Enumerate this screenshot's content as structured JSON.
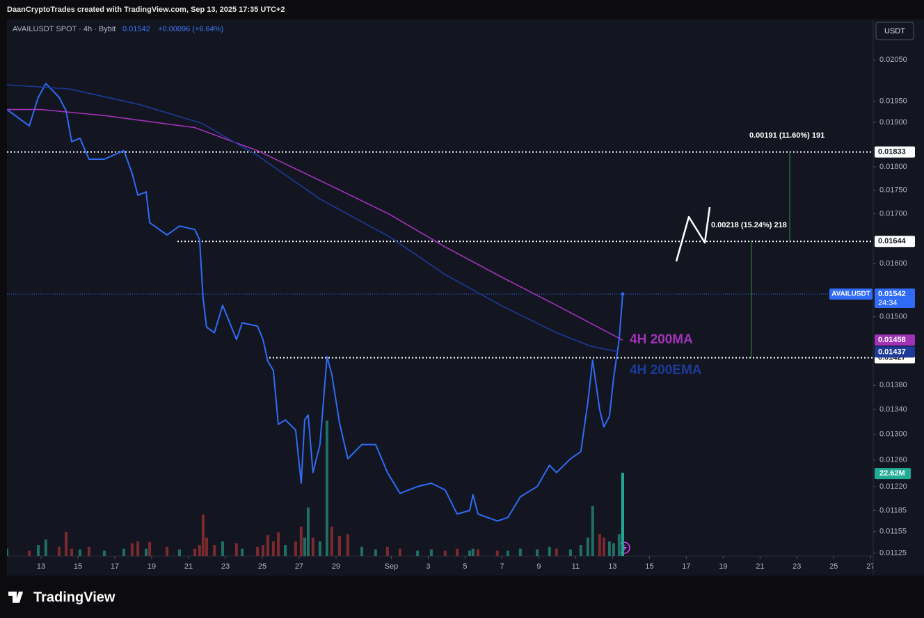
{
  "header": {
    "credit": "DaanCryptoTrades created with TradingView.com, Sep 13, 2025 17:35 UTC+2",
    "symbol": "AVAILUSDT SPOT · 4h · Bybit",
    "change": "+0.00096 (+6.64%)",
    "currency": "USDT",
    "brand": "TradingView"
  },
  "chart_data": {
    "type": "line",
    "log": true,
    "grid": false,
    "x": [
      11.15,
      12.36,
      12.85,
      13.26,
      13.98,
      14.36,
      14.66,
      15.11,
      15.6,
      16.43,
      17.49,
      17.94,
      18.25,
      18.7,
      18.89,
      19.83,
      20.51,
      21.34,
      21.6,
      21.79,
      21.98,
      22.4,
      22.85,
      23.6,
      23.91,
      24.74,
      25.04,
      25.3,
      25.6,
      25.87,
      26.25,
      26.81,
      27.11,
      27.3,
      27.49,
      27.75,
      28.13,
      28.51,
      28.77,
      29.19,
      29.64,
      30.4,
      31.15,
      31.79,
      32.47,
      33.42,
      34.17,
      34.92,
      35.57,
      36.25,
      36.43,
      36.7,
      37.75,
      38.32,
      39.0,
      39.91,
      40.58,
      40.96,
      41.72,
      42.28,
      42.66,
      42.92,
      43.3,
      43.53,
      43.83,
      44.06,
      44.36,
      44.55
    ],
    "xlim": [
      11.15,
      58.14
    ],
    "xticks": [
      13,
      15,
      17,
      19,
      21,
      23,
      25,
      27,
      29,
      {
        "value": 32,
        "label": "Sep"
      },
      {
        "value": 34,
        "label": "3"
      },
      {
        "value": 36,
        "label": "5"
      },
      {
        "value": 38,
        "label": "7"
      },
      {
        "value": 40,
        "label": "9"
      },
      {
        "value": 42,
        "label": "11"
      },
      {
        "value": 44,
        "label": "13"
      },
      {
        "value": 46,
        "label": "15"
      },
      {
        "value": 48,
        "label": "17"
      },
      {
        "value": 50,
        "label": "19"
      },
      {
        "value": 52,
        "label": "21"
      },
      {
        "value": 54,
        "label": "23"
      },
      {
        "value": 56,
        "label": "25"
      },
      {
        "value": 58,
        "label": "27"
      }
    ],
    "ylim": [
      0.01121,
      0.0215
    ],
    "yticks": [
      {
        "value": 0.0205,
        "label": "0.02050"
      },
      {
        "value": 0.0195,
        "label": "0.01950"
      },
      {
        "value": 0.019,
        "label": "0.01900"
      },
      {
        "value": 0.018,
        "label": "0.01800"
      },
      {
        "value": 0.0175,
        "label": "0.01750"
      },
      {
        "value": 0.017,
        "label": "0.01700"
      },
      {
        "value": 0.016,
        "label": "0.01600"
      },
      {
        "value": 0.015,
        "label": "0.01500"
      },
      {
        "value": 0.0138,
        "label": "0.01380"
      },
      {
        "value": 0.0134,
        "label": "0.01340"
      },
      {
        "value": 0.013,
        "label": "0.01300"
      },
      {
        "value": 0.0126,
        "label": "0.01260"
      },
      {
        "value": 0.0122,
        "label": "0.01220"
      },
      0.01185,
      0.01155,
      0.01125
    ],
    "series": [
      {
        "name": "AVAILUSDT",
        "color": "#2f6bf5",
        "values": [
          0.0193,
          0.01892,
          0.01959,
          0.01992,
          0.01959,
          0.01927,
          0.01856,
          0.01864,
          0.01817,
          0.01817,
          0.01836,
          0.01786,
          0.01739,
          0.01746,
          0.01682,
          0.01657,
          0.01675,
          0.01668,
          0.01647,
          0.01534,
          0.01481,
          0.01471,
          0.01521,
          0.01459,
          0.01489,
          0.01483,
          0.01459,
          0.01421,
          0.01405,
          0.01316,
          0.01323,
          0.01307,
          0.01225,
          0.01323,
          0.01331,
          0.01241,
          0.01284,
          0.01429,
          0.01399,
          0.01318,
          0.01262,
          0.01284,
          0.01284,
          0.01241,
          0.0121,
          0.0122,
          0.01225,
          0.01215,
          0.0118,
          0.01185,
          0.01208,
          0.0118,
          0.0117,
          0.01175,
          0.01205,
          0.0122,
          0.01252,
          0.01241,
          0.01262,
          0.01273,
          0.01352,
          0.01423,
          0.0134,
          0.01312,
          0.01329,
          0.01393,
          0.01459,
          0.01542
        ]
      },
      {
        "name": "4H 200MA",
        "color": "#a233b8",
        "x": [
          11.15,
          13.0,
          16.43,
          21.34,
          24.74,
          28.89,
          31.91,
          34.92,
          37.94,
          40.96,
          44.55
        ],
        "values": [
          0.0193,
          0.0193,
          0.01916,
          0.01888,
          0.01836,
          0.01756,
          0.01699,
          0.01633,
          0.01575,
          0.01521,
          0.01458
        ]
      },
      {
        "name": "4H 200EMA",
        "color": "#1d3a98",
        "x": [
          11.15,
          14.55,
          18.32,
          21.72,
          24.74,
          28.13,
          31.91,
          34.92,
          37.94,
          40.96,
          42.85,
          44.36
        ],
        "values": [
          0.01989,
          0.01979,
          0.01942,
          0.01898,
          0.01825,
          0.01731,
          0.01653,
          0.01579,
          0.01521,
          0.01471,
          0.01447,
          0.01437
        ]
      }
    ],
    "volume": {
      "up_color": "#1f6f66",
      "down_color": "#7d2a2e",
      "last_color": "#22ab94",
      "last_label": "22.62M",
      "values": [
        2.0,
        1.5,
        3.0,
        4.5,
        2.5,
        6.6,
        2.0,
        1.8,
        2.5,
        1.5,
        2.0,
        3.5,
        4.0,
        2.0,
        3.8,
        2.5,
        1.8,
        2.0,
        3.0,
        11.3,
        5.0,
        3.0,
        4.0,
        3.5,
        2.0,
        2.5,
        3.0,
        5.7,
        4.0,
        6.5,
        3.0,
        4.0,
        8.0,
        5.0,
        13.2,
        5.0,
        4.0,
        36.8,
        8.0,
        5.5,
        6.0,
        2.5,
        1.8,
        2.5,
        2.0,
        1.5,
        1.8,
        1.5,
        2.0,
        1.5,
        2.0,
        1.8,
        1.5,
        1.5,
        2.0,
        1.8,
        2.5,
        2.0,
        1.8,
        3.0,
        5.0,
        13.6,
        6.0,
        5.0,
        4.0,
        3.5,
        6.0,
        22.62
      ]
    },
    "countdown": "24:34",
    "levels": [
      0.01833,
      0.01644,
      0.01427
    ],
    "measures": [
      "0.00191 (11.60%) 191",
      "0.00218 (15.24%) 218"
    ]
  }
}
